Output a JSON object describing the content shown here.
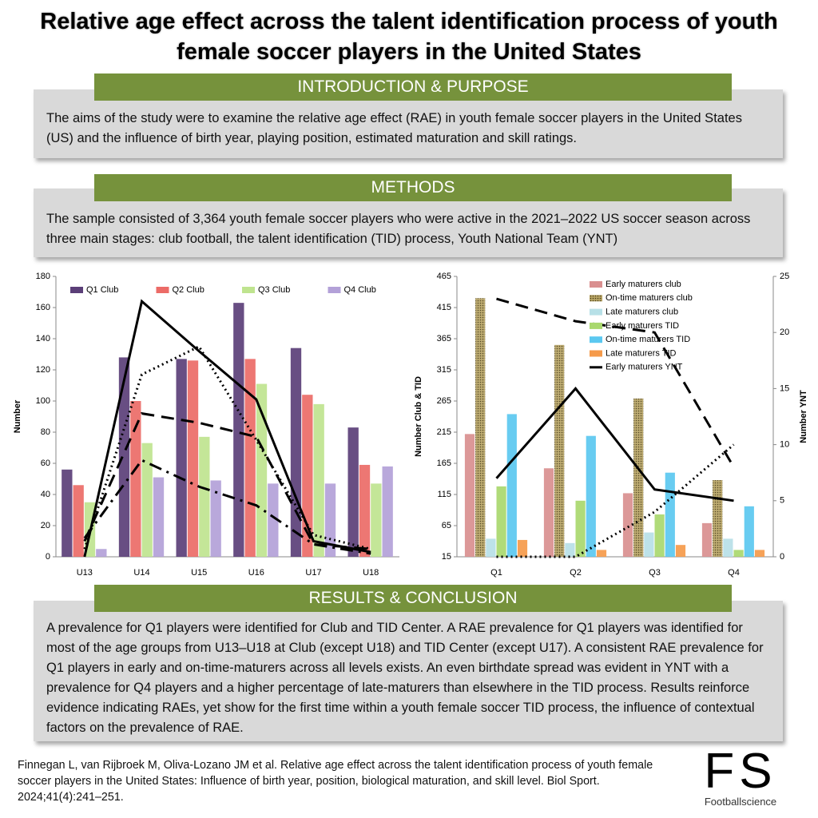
{
  "header": {
    "title": "Relative age effect across the talent identification process of youth female soccer players in the United States"
  },
  "sections": [
    {
      "heading": "INTRODUCTION & PURPOSE",
      "text": "The aims of the study were to examine the relative age effect (RAE) in youth female soccer players in the United States (US) and the influence of birth year, playing position, estimated maturation and skill ratings."
    },
    {
      "heading": "METHODS",
      "text": "The sample consisted of 3,364 youth female soccer players who were active in the 2021–2022 US soccer season across three main stages: club football,  the talent identification (TID) process, Youth National Team (YNT)"
    },
    {
      "heading": "RESULTS & CONCLUSION",
      "text": "A prevalence for Q1 players were identified for Club and TID Center. A RAE prevalence for Q1 players was identified for most of the age groups from U13–U18 at Club (except U18) and TID Center (except U17). A consistent RAE prevalence for Q1 players in early and on-time-maturers across all levels exists. An even birthdate spread was evident in YNT with a prevalence for Q4 players and a higher percentage of late-maturers than elsewhere in the TID process. Results reinforce evidence indicating RAEs, yet show for the first time within a youth female soccer TID process, the influence of contextual factors on the prevalence of RAE."
    }
  ],
  "chart_data": [
    {
      "type": "bar",
      "y_label": "Number",
      "legend": "top",
      "categories": [
        "U13",
        "U14",
        "U15",
        "U16",
        "U17",
        "U18"
      ],
      "ylim": [
        0,
        180
      ],
      "yticks": [
        0,
        20,
        40,
        60,
        80,
        100,
        120,
        140,
        160,
        180
      ],
      "grid": false,
      "series": [
        {
          "name": "Q1 Club",
          "color": "#5b3f78",
          "values": [
            56,
            128,
            127,
            163,
            134,
            83
          ]
        },
        {
          "name": "Q2 Club",
          "color": "#ec6b67",
          "values": [
            46,
            100,
            126,
            127,
            104,
            59
          ]
        },
        {
          "name": "Q3 Club",
          "color": "#bfe48f",
          "values": [
            35,
            73,
            77,
            111,
            98,
            47
          ]
        },
        {
          "name": "Q4 Club",
          "color": "#b3a1d8",
          "values": [
            5,
            51,
            49,
            47,
            47,
            58
          ]
        }
      ],
      "lines": [
        {
          "style": "solid",
          "color": "#000000",
          "values": [
            0,
            164,
            132,
            101,
            10,
            3
          ]
        },
        {
          "style": "dotted",
          "color": "#000000",
          "values": [
            5,
            117,
            135,
            75,
            14,
            5
          ]
        },
        {
          "style": "dashed",
          "color": "#000000",
          "values": [
            10,
            92,
            86,
            77,
            8,
            5
          ]
        },
        {
          "style": "dashdot",
          "color": "#000000",
          "values": [
            12,
            62,
            45,
            33,
            8,
            2
          ]
        }
      ]
    },
    {
      "type": "bar",
      "y_label": "Number Club & TID",
      "y2_label": "Number YNT",
      "legend": "upper right",
      "categories": [
        "Q1",
        "Q2",
        "Q3",
        "Q4"
      ],
      "ylim": [
        15,
        465
      ],
      "yticks": [
        15,
        65,
        115,
        165,
        215,
        265,
        315,
        365,
        415,
        465
      ],
      "y2lim": [
        0,
        25
      ],
      "y2ticks": [
        0,
        5,
        10,
        15,
        20,
        25
      ],
      "grid": false,
      "series": [
        {
          "name": "Early maturers club",
          "color": "#d98f8f",
          "values": [
            212,
            157,
            117,
            69
          ]
        },
        {
          "name": "On-time maturers club",
          "color": "#8c7a3f",
          "pattern": "dots",
          "values": [
            430,
            355,
            269,
            138
          ]
        },
        {
          "name": "Late maturers club",
          "color": "#b7e0e7",
          "values": [
            44,
            37,
            54,
            44
          ]
        },
        {
          "name": "Early maturers TID",
          "color": "#a9d86e",
          "values": [
            128,
            105,
            83,
            26
          ]
        },
        {
          "name": "On-time maturers TID",
          "color": "#5bc8f0",
          "values": [
            244,
            209,
            150,
            96
          ]
        },
        {
          "name": "Late maturers TID",
          "color": "#f59a4a",
          "values": [
            42,
            26,
            34,
            26
          ]
        },
        {
          "name": "Early maturers YNT",
          "color": "#000000",
          "style": "solid",
          "axis": "y2",
          "values": [
            7,
            15,
            6,
            5
          ]
        }
      ],
      "lines": [
        {
          "style": "dashed",
          "color": "#000000",
          "axis": "y2",
          "values": [
            23,
            21,
            20,
            8
          ]
        },
        {
          "style": "dotted",
          "color": "#000000",
          "axis": "y2",
          "values": [
            0,
            0,
            4,
            10
          ]
        }
      ]
    }
  ],
  "citation": "Finnegan L, van Rijbroek M, Oliva-Lozano JM et al. Relative age effect across the talent identification process of youth female soccer players in the United States: Influence of birth year, position, biological maturation, and skill level. Biol Sport. 2024;41(4):241–251.",
  "logo": {
    "letters": "FS",
    "name": "Footballscience"
  }
}
